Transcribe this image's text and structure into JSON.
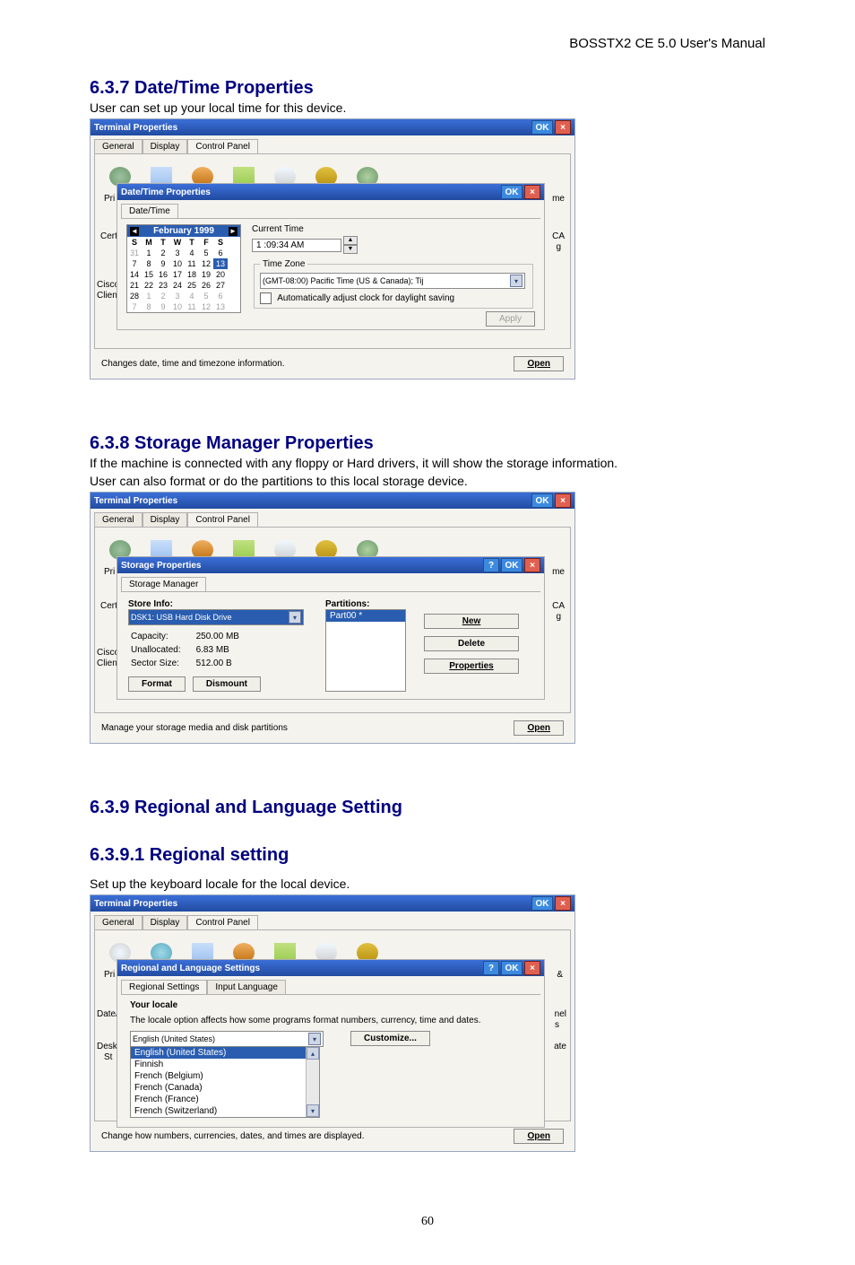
{
  "page": {
    "header": "BOSSTX2 CE 5.0 User's Manual",
    "number": "60"
  },
  "s637": {
    "heading": "6.3.7  Date/Time Properties",
    "text": "User can set up your local time for this device.",
    "outer": {
      "title": "Terminal Properties",
      "ok": "OK",
      "tabs": [
        "General",
        "Display",
        "Control Panel"
      ],
      "footer_text": "Changes date, time and timezone information.",
      "open": "Open",
      "side_labels": {
        "pri": "Pri",
        "cert": "Cert",
        "cisco": "Cisco",
        "clien": "Clien",
        "ca": "CA",
        "g": "g",
        "me": "me"
      }
    },
    "inner": {
      "title": "Date/Time Properties",
      "ok": "OK",
      "tab": "Date/Time",
      "month": "February 1999",
      "day_headers": [
        "S",
        "M",
        "T",
        "W",
        "T",
        "F",
        "S"
      ],
      "weeks": [
        [
          {
            "d": "31",
            "dim": true
          },
          {
            "d": "1"
          },
          {
            "d": "2"
          },
          {
            "d": "3"
          },
          {
            "d": "4"
          },
          {
            "d": "5"
          },
          {
            "d": "6"
          }
        ],
        [
          {
            "d": "7"
          },
          {
            "d": "8"
          },
          {
            "d": "9"
          },
          {
            "d": "10"
          },
          {
            "d": "11"
          },
          {
            "d": "12"
          },
          {
            "d": "13",
            "sel": true
          }
        ],
        [
          {
            "d": "14"
          },
          {
            "d": "15"
          },
          {
            "d": "16"
          },
          {
            "d": "17"
          },
          {
            "d": "18"
          },
          {
            "d": "19"
          },
          {
            "d": "20"
          }
        ],
        [
          {
            "d": "21"
          },
          {
            "d": "22"
          },
          {
            "d": "23"
          },
          {
            "d": "24"
          },
          {
            "d": "25"
          },
          {
            "d": "26"
          },
          {
            "d": "27"
          }
        ],
        [
          {
            "d": "28"
          },
          {
            "d": "1",
            "dim": true
          },
          {
            "d": "2",
            "dim": true
          },
          {
            "d": "3",
            "dim": true
          },
          {
            "d": "4",
            "dim": true
          },
          {
            "d": "5",
            "dim": true
          },
          {
            "d": "6",
            "dim": true
          }
        ],
        [
          {
            "d": "7",
            "dim": true
          },
          {
            "d": "8",
            "dim": true
          },
          {
            "d": "9",
            "dim": true
          },
          {
            "d": "10",
            "dim": true
          },
          {
            "d": "11",
            "dim": true
          },
          {
            "d": "12",
            "dim": true
          },
          {
            "d": "13",
            "dim": true
          }
        ]
      ],
      "current_time_label": "Current Time",
      "current_time": "1 :09:34 AM",
      "time_zone_label": "Time Zone",
      "time_zone_value": "(GMT-08:00) Pacific Time (US & Canada); Tij",
      "dst_label": "Automatically adjust clock for daylight saving",
      "apply": "Apply"
    }
  },
  "s638": {
    "heading": "6.3.8  Storage Manager Properties",
    "text1": "If the machine is connected with any floppy or Hard drivers, it will show the storage information.",
    "text2": "User can also format or do the partitions to this local storage device.",
    "outer": {
      "title": "Terminal Properties",
      "ok": "OK",
      "tabs": [
        "General",
        "Display",
        "Control Panel"
      ],
      "footer_text": "Manage your storage media and disk partitions",
      "open": "Open",
      "side_labels": {
        "pri": "Pri",
        "cert": "Cert",
        "cisco": "Cisco",
        "clien": "Clien",
        "ca": "CA",
        "g": "g",
        "me": "me"
      }
    },
    "inner": {
      "title": "Storage Properties",
      "help": "?",
      "ok": "OK",
      "tab": "Storage Manager",
      "store_info_label": "Store Info:",
      "store_select": "DSK1: USB Hard Disk Drive",
      "capacity_label": "Capacity:",
      "capacity_val": "250.00 MB",
      "unalloc_label": "Unallocated:",
      "unalloc_val": "6.83 MB",
      "sector_label": "Sector Size:",
      "sector_val": "512.00 B",
      "format": "Format",
      "dismount": "Dismount",
      "partitions_label": "Partitions:",
      "partition_item": "Part00 *",
      "new": "New",
      "delete": "Delete",
      "properties": "Properties"
    }
  },
  "s639": {
    "heading": "6.3.9  Regional and Language Setting",
    "sub_heading": "6.3.9.1 Regional setting",
    "text": "Set up the keyboard locale for the local device.",
    "outer": {
      "title": "Terminal Properties",
      "ok": "OK",
      "tabs": [
        "General",
        "Display",
        "Control Panel"
      ],
      "footer_text": "Change how numbers, currencies, dates, and times are displayed.",
      "open": "Open",
      "side_labels": {
        "pri": "Pri",
        "date": "Date/",
        "desk": "Desk",
        "st": "St",
        "r": "&",
        "nel": "nel",
        "s": "s",
        "ate": "ate"
      }
    },
    "inner": {
      "title": "Regional and Language Settings",
      "help": "?",
      "ok": "OK",
      "tabs": [
        "Regional Settings",
        "Input Language"
      ],
      "locale_label": "Your locale",
      "locale_desc": "The locale option affects how some programs format numbers, currency, time and dates.",
      "selected": "English (United States)",
      "customize": "Customize...",
      "options": [
        "English (United States)",
        "Finnish",
        "French (Belgium)",
        "French (Canada)",
        "French (France)",
        "French (Switzerland)"
      ]
    }
  }
}
